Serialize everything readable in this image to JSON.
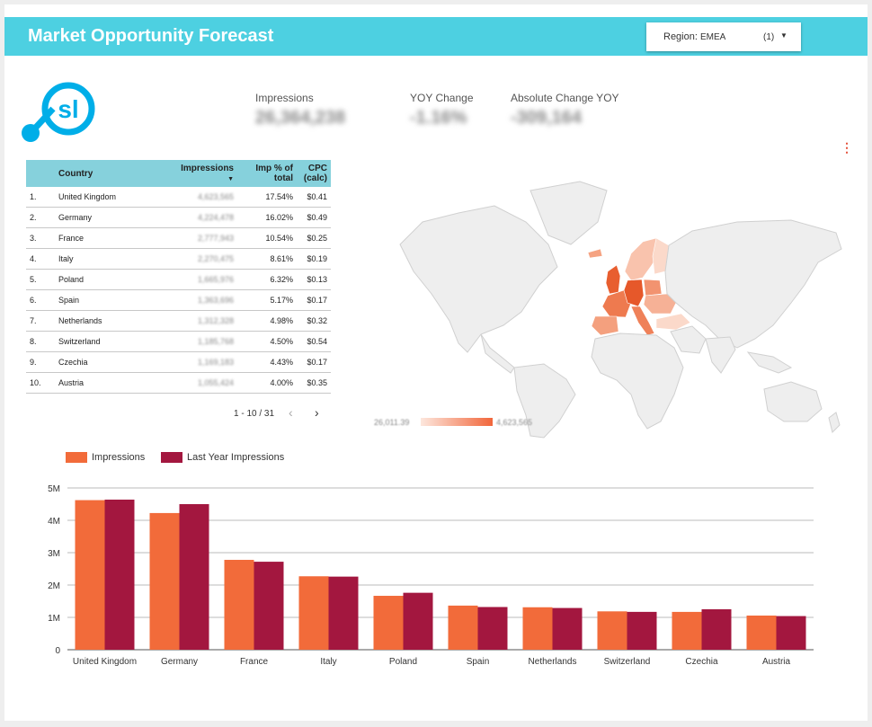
{
  "header": {
    "title": "Market Opportunity Forecast"
  },
  "filter": {
    "label": "Region:",
    "value": "EMEA",
    "count": "(1)"
  },
  "kpis": [
    {
      "label": "Impressions",
      "value": "26,364,238"
    },
    {
      "label": "YOY Change",
      "value": "-1.16%"
    },
    {
      "label": "Absolute Change YOY",
      "value": "-309,164"
    }
  ],
  "table": {
    "headers": {
      "country": "Country",
      "impressions": "Impressions",
      "share": "Imp % of total",
      "cpc": "CPC (calc)"
    },
    "rows": [
      {
        "rank": "1.",
        "country": "United Kingdom",
        "impressions": "4,623,565",
        "share": "17.54%",
        "cpc": "$0.41"
      },
      {
        "rank": "2.",
        "country": "Germany",
        "impressions": "4,224,478",
        "share": "16.02%",
        "cpc": "$0.49"
      },
      {
        "rank": "3.",
        "country": "France",
        "impressions": "2,777,943",
        "share": "10.54%",
        "cpc": "$0.25"
      },
      {
        "rank": "4.",
        "country": "Italy",
        "impressions": "2,270,475",
        "share": "8.61%",
        "cpc": "$0.19"
      },
      {
        "rank": "5.",
        "country": "Poland",
        "impressions": "1,665,976",
        "share": "6.32%",
        "cpc": "$0.13"
      },
      {
        "rank": "6.",
        "country": "Spain",
        "impressions": "1,363,696",
        "share": "5.17%",
        "cpc": "$0.17"
      },
      {
        "rank": "7.",
        "country": "Netherlands",
        "impressions": "1,312,328",
        "share": "4.98%",
        "cpc": "$0.32"
      },
      {
        "rank": "8.",
        "country": "Switzerland",
        "impressions": "1,185,768",
        "share": "4.50%",
        "cpc": "$0.54"
      },
      {
        "rank": "9.",
        "country": "Czechia",
        "impressions": "1,169,183",
        "share": "4.43%",
        "cpc": "$0.17"
      },
      {
        "rank": "10.",
        "country": "Austria",
        "impressions": "1,055,424",
        "share": "4.00%",
        "cpc": "$0.35"
      }
    ],
    "pagination": "1 - 10 / 31"
  },
  "map_scale": {
    "min": "26,011.39",
    "max": "4,623,565"
  },
  "colors": {
    "impressions": "#f26b3a",
    "last_year": "#a3173f",
    "header": "#4dd0e1",
    "table_header": "#86d1dc"
  },
  "icons": {
    "logo": "logo",
    "dropdown": "caret-down-icon",
    "menu": "kebab-menu-icon",
    "prev": "chevron-left-icon",
    "next": "chevron-right-icon"
  },
  "chart_data": {
    "type": "bar",
    "categories": [
      "United Kingdom",
      "Germany",
      "France",
      "Italy",
      "Poland",
      "Spain",
      "Netherlands",
      "Switzerland",
      "Czechia",
      "Austria"
    ],
    "series": [
      {
        "name": "Impressions",
        "values": [
          4623565,
          4224478,
          2777943,
          2270475,
          1665976,
          1363696,
          1312328,
          1185768,
          1169183,
          1055424
        ]
      },
      {
        "name": "Last Year Impressions",
        "values": [
          4640000,
          4500000,
          2720000,
          2260000,
          1760000,
          1320000,
          1290000,
          1170000,
          1250000,
          1040000
        ]
      }
    ],
    "yticks": [
      "0",
      "1M",
      "2M",
      "3M",
      "4M",
      "5M"
    ],
    "ylim": [
      0,
      5000000
    ],
    "grid": true,
    "legend": "top-left"
  }
}
